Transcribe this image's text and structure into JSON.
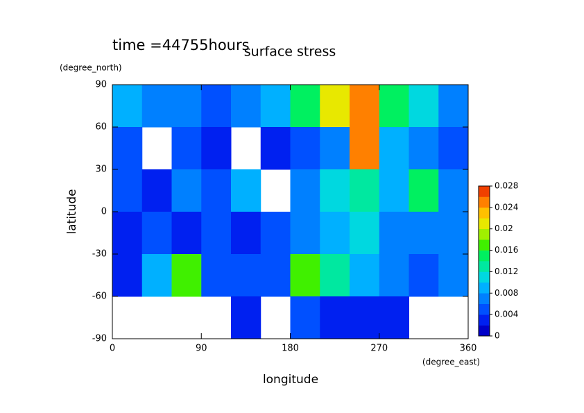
{
  "chart_data": {
    "type": "contour",
    "title": "surface stress",
    "subtitle": "time =44755hours",
    "x_label": "longitude",
    "x_units": "(degree_east)",
    "y_label": "latitude",
    "y_units": "(degree_north)",
    "xlim": [
      0,
      360
    ],
    "xticks": [
      0,
      90,
      180,
      270,
      360
    ],
    "ylim": [
      -90,
      90
    ],
    "yticks": [
      -90,
      -60,
      -30,
      0,
      30,
      60,
      90
    ],
    "x": [
      15,
      45,
      75,
      105,
      135,
      165,
      195,
      225,
      255,
      285,
      315,
      345
    ],
    "y": [
      75,
      45,
      15,
      -15,
      -45,
      -75
    ],
    "z": [
      [
        0.008,
        0.006,
        0.006,
        0.004,
        0.006,
        0.008,
        0.014,
        0.02,
        0.026,
        0.014,
        0.01,
        0.006
      ],
      [
        0.004,
        null,
        0.004,
        0.002,
        null,
        0.002,
        0.004,
        0.006,
        0.024,
        0.008,
        0.006,
        0.004
      ],
      [
        0.004,
        0.002,
        0.006,
        0.004,
        0.008,
        null,
        0.006,
        0.01,
        0.012,
        0.008,
        0.014,
        0.006
      ],
      [
        0.002,
        0.004,
        0.002,
        0.004,
        0.002,
        0.004,
        0.006,
        0.008,
        0.01,
        0.006,
        0.006,
        0.006
      ],
      [
        0.002,
        0.008,
        0.016,
        0.004,
        0.004,
        0.004,
        0.016,
        0.012,
        0.008,
        0.006,
        0.004,
        0.006
      ],
      [
        null,
        null,
        null,
        null,
        0.002,
        null,
        0.004,
        0.002,
        0.002,
        0.002,
        null,
        null
      ]
    ],
    "zlim": [
      0,
      0.028
    ],
    "zticks": [
      0,
      0.004,
      0.008,
      0.012,
      0.016,
      0.02,
      0.024,
      0.028
    ],
    "colors": [
      "#0000c8",
      "#0020f0",
      "#0050ff",
      "#0080ff",
      "#00b0ff",
      "#00d8e0",
      "#00e8a0",
      "#00f060",
      "#40f000",
      "#a0f000",
      "#e8e800",
      "#ffc000",
      "#ff8000",
      "#f04000"
    ]
  }
}
